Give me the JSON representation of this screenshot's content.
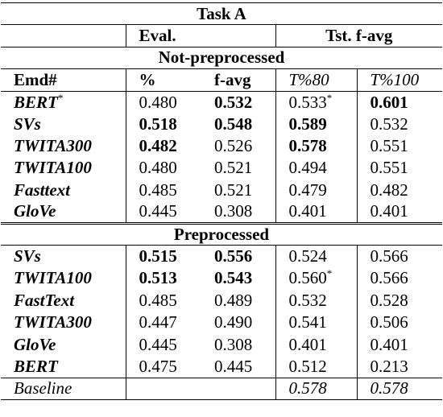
{
  "title": "Task A",
  "group_headers": {
    "eval": "Eval.",
    "test": "Tst. f-avg"
  },
  "col_headers": [
    "Emd#",
    "%",
    "f-avg",
    "T%80",
    "T%100"
  ],
  "section1": {
    "title": "Not-preprocessed",
    "rows": [
      {
        "name": "BERT",
        "mark": "*",
        "v1": "0.480",
        "v2": "0.532",
        "v3": "0.533",
        "v3_mark": "*",
        "v4": "0.601"
      },
      {
        "name": "SVs",
        "v1": "0.518",
        "v2": "0.548",
        "v3": "0.589",
        "v4": "0.532"
      },
      {
        "name": "TWITA300",
        "v1": "0.482",
        "v2": "0.526",
        "v3": "0.578",
        "v4": "0.551"
      },
      {
        "name": "TWITA100",
        "v1": "0.480",
        "v2": "0.521",
        "v3": "0.494",
        "v4": "0.551"
      },
      {
        "name": "Fasttext",
        "v1": "0.485",
        "v2": "0.521",
        "v3": "0.479",
        "v4": "0.482"
      },
      {
        "name": "GloVe",
        "v1": "0.445",
        "v2": "0.308",
        "v3": "0.401",
        "v4": "0.401"
      }
    ]
  },
  "section2": {
    "title": "Preprocessed",
    "rows": [
      {
        "name": "SVs",
        "v1": "0.515",
        "v2": "0.556",
        "v3": "0.524",
        "v4": "0.566"
      },
      {
        "name": "TWITA100",
        "v1": "0.513",
        "v2": "0.543",
        "v3": "0.560",
        "v3_mark": "*",
        "v4": "0.566"
      },
      {
        "name": "FastText",
        "v1": "0.485",
        "v2": "0.489",
        "v3": "0.532",
        "v4": "0.528"
      },
      {
        "name": "TWITA300",
        "v1": "0.447",
        "v2": "0.490",
        "v3": "0.541",
        "v4": "0.506"
      },
      {
        "name": "GloVe",
        "v1": "0.445",
        "v2": "0.308",
        "v3": "0.401",
        "v4": "0.401"
      },
      {
        "name": "BERT",
        "v1": "0.475",
        "v2": "0.445",
        "v3": "0.512",
        "v4": "0.213"
      }
    ]
  },
  "baseline": {
    "name": "Baseline",
    "v3": "0.578",
    "v4": "0.578"
  }
}
